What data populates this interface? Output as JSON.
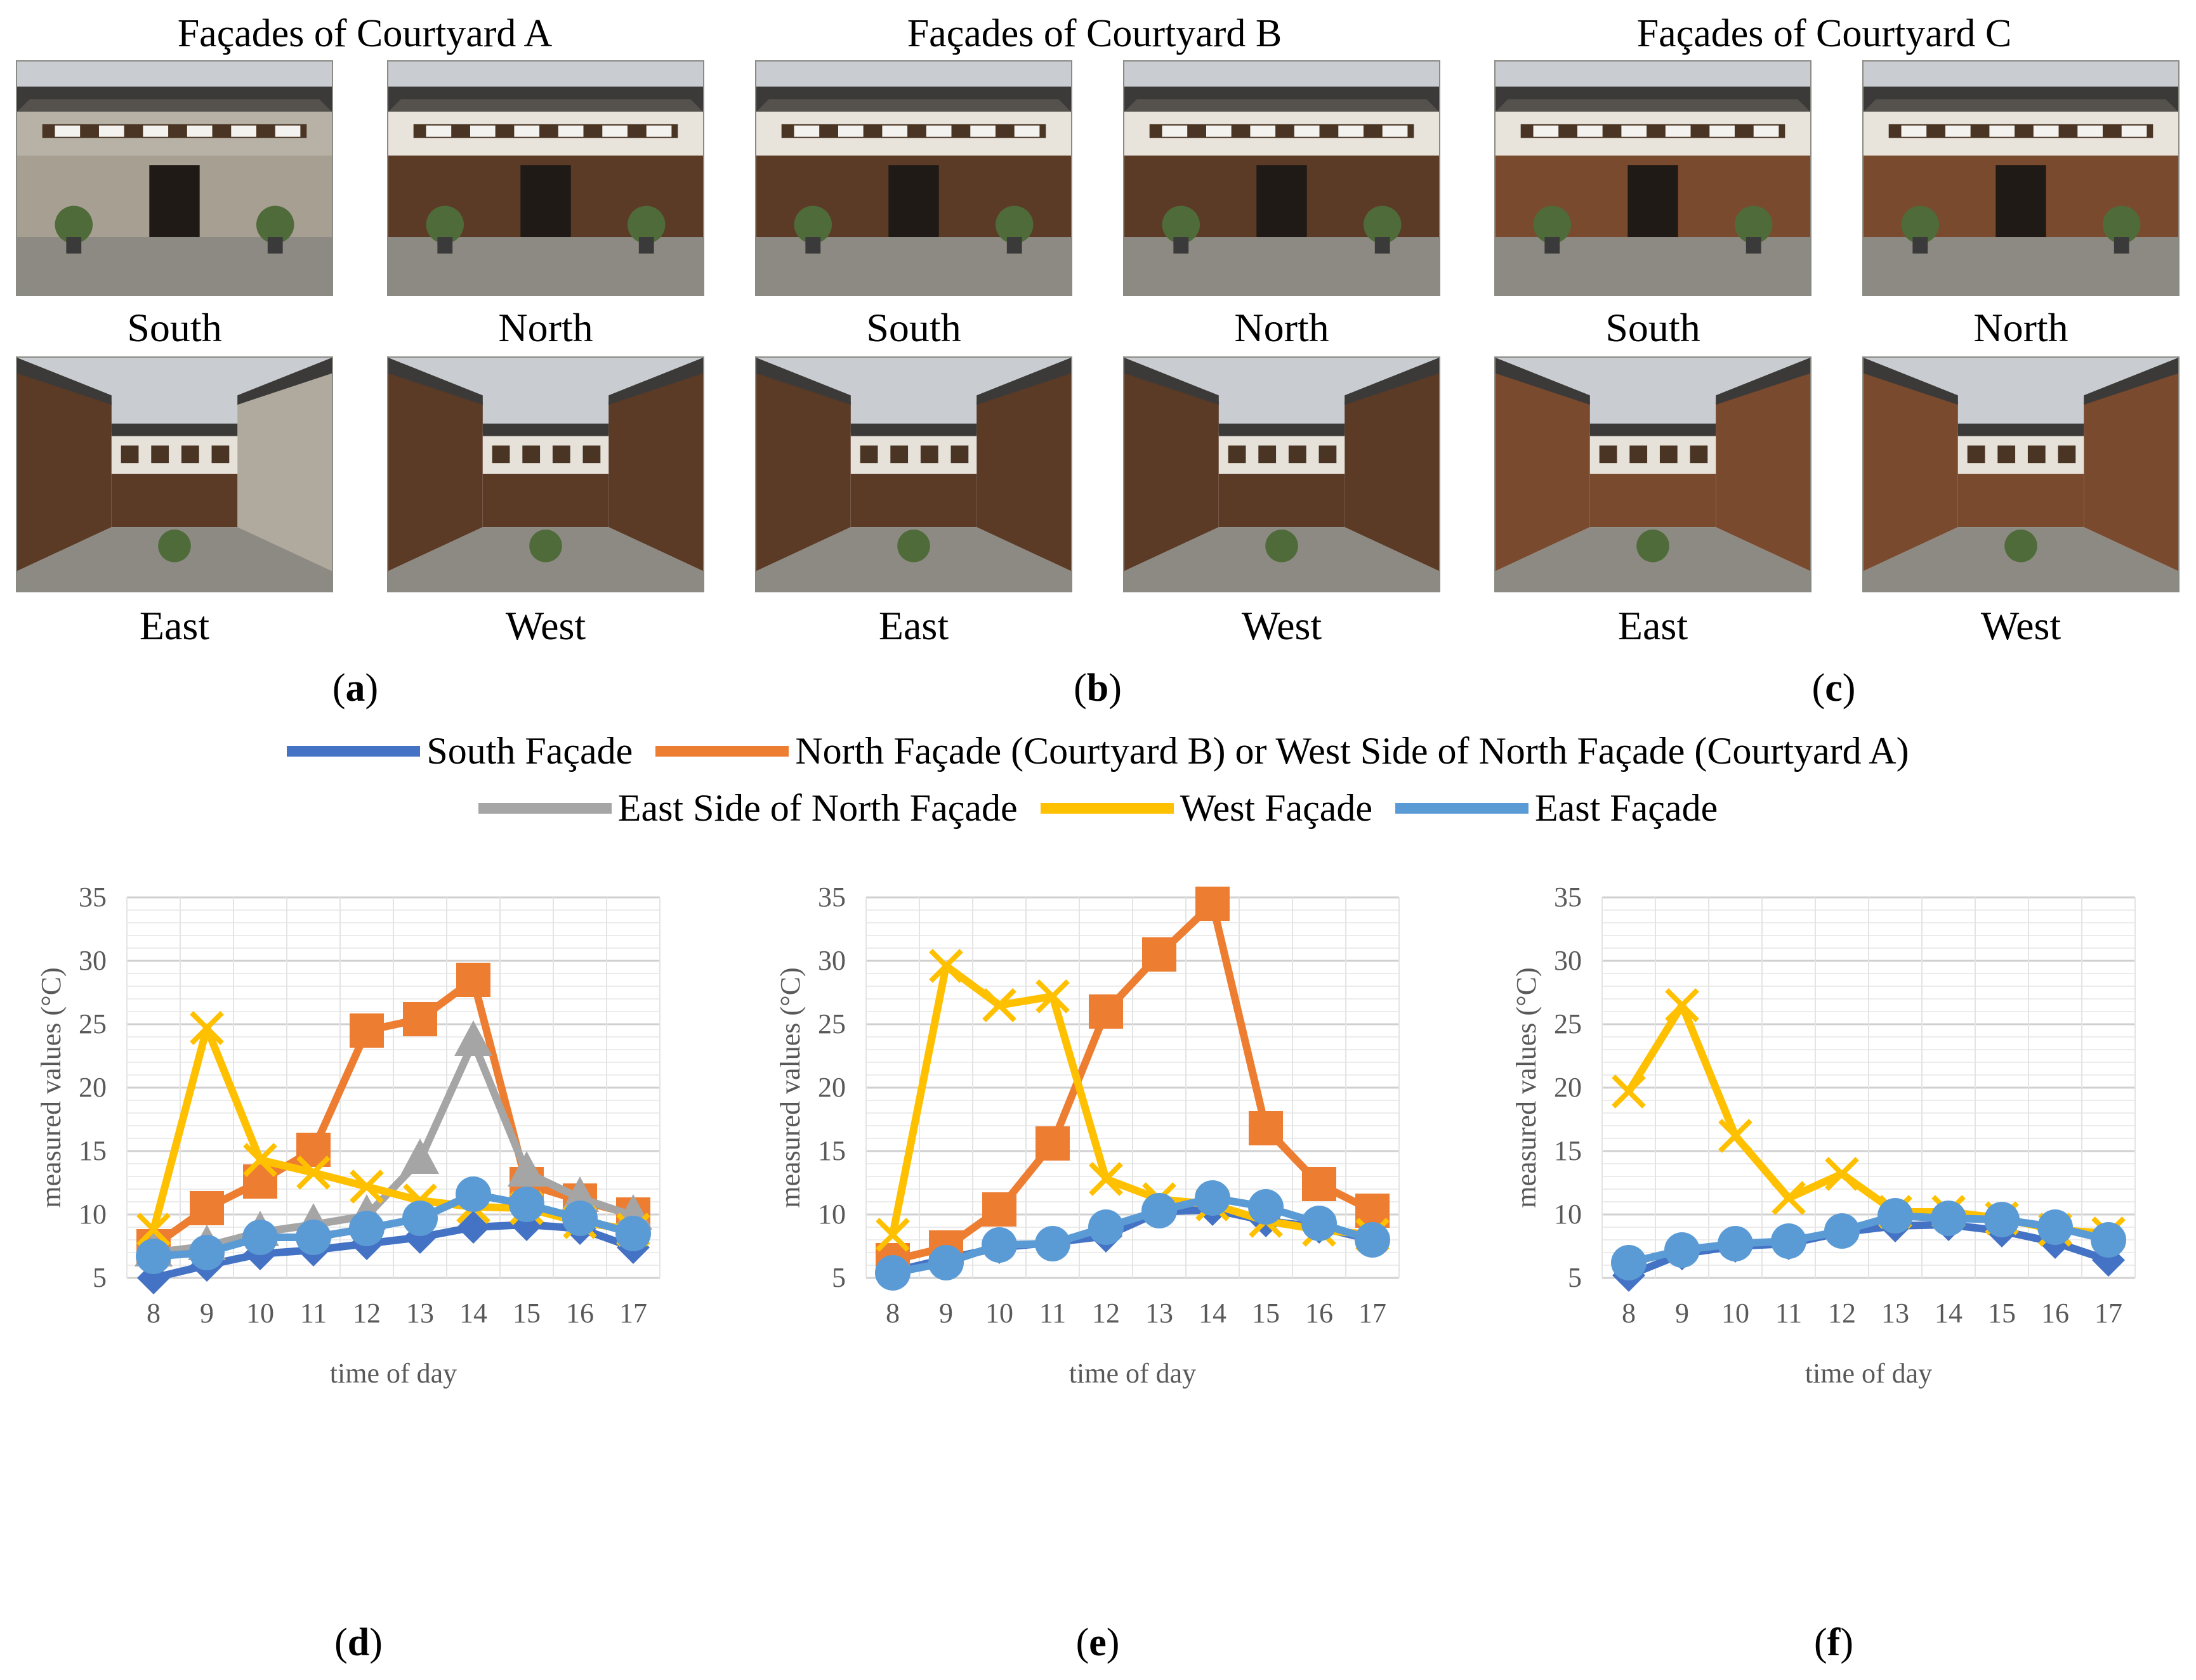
{
  "top": {
    "titles": [
      "Façades of Courtyard A",
      "Façades of Courtyard B",
      "Façades of Courtyard C"
    ],
    "photo_labels": {
      "south": "South",
      "north": "North",
      "east": "East",
      "west": "West"
    },
    "panels": [
      "a",
      "b",
      "c"
    ]
  },
  "legend": {
    "south": {
      "label": "South Façade",
      "color": "#4472C4"
    },
    "north": {
      "label": "North Façade (Courtyard B) or West Side of North Façade (Courtyard A)",
      "color": "#ED7D31"
    },
    "east_north": {
      "label": "East Side of North Façade",
      "color": "#A5A5A5"
    },
    "west": {
      "label": "West Façade",
      "color": "#FFC000"
    },
    "east": {
      "label": "East Façade",
      "color": "#5B9BD5"
    }
  },
  "bottom_panels": [
    "d",
    "e",
    "f"
  ],
  "chart_data": [
    {
      "type": "line",
      "panel": "d",
      "xlabel": "time of day",
      "ylabel": "measured values (°C)",
      "x": [
        8,
        9,
        10,
        11,
        12,
        13,
        14,
        15,
        16,
        17
      ],
      "ylim": [
        5,
        35
      ],
      "yticks": [
        5,
        10,
        15,
        20,
        25,
        30,
        35
      ],
      "series": [
        {
          "name": "South Façade",
          "key": "south",
          "marker": "diamond",
          "values": [
            5.0,
            6.0,
            6.9,
            7.2,
            7.7,
            8.2,
            9.0,
            9.2,
            8.9,
            7.4
          ]
        },
        {
          "name": "North Façade (Courtyard B) or West Side of North Façade (Courtyard A)",
          "key": "north",
          "marker": "square",
          "values": [
            7.5,
            10.5,
            12.6,
            15.1,
            24.5,
            25.4,
            28.5,
            12.4,
            11.1,
            10.0
          ]
        },
        {
          "name": "East Side of North Façade",
          "key": "east_north",
          "marker": "triangle",
          "values": [
            7.0,
            7.5,
            8.6,
            9.2,
            9.9,
            14.3,
            23.6,
            13.3,
            11.3,
            9.9
          ]
        },
        {
          "name": "West Façade",
          "key": "west",
          "marker": "x",
          "values": [
            8.8,
            24.7,
            14.3,
            13.3,
            12.2,
            11.1,
            10.6,
            10.5,
            9.4,
            8.8
          ]
        },
        {
          "name": "East Façade",
          "key": "east",
          "marker": "circle",
          "values": [
            6.7,
            7.0,
            8.2,
            8.2,
            8.9,
            9.7,
            11.6,
            10.8,
            9.7,
            8.5
          ]
        }
      ]
    },
    {
      "type": "line",
      "panel": "e",
      "xlabel": "time of day",
      "ylabel": "measured values (°C)",
      "x": [
        8,
        9,
        10,
        11,
        12,
        13,
        14,
        15,
        16,
        17
      ],
      "ylim": [
        5,
        35
      ],
      "yticks": [
        5,
        10,
        15,
        20,
        25,
        30,
        35
      ],
      "series": [
        {
          "name": "South Façade",
          "key": "south",
          "marker": "diamond",
          "values": [
            5.5,
            6.5,
            7.4,
            7.8,
            8.3,
            10.2,
            10.4,
            9.5,
            9.0,
            8.0
          ]
        },
        {
          "name": "North Façade (Courtyard B) or West Side of North Façade (Courtyard A)",
          "key": "north",
          "marker": "square",
          "values": [
            6.4,
            7.4,
            10.4,
            15.6,
            26.0,
            30.5,
            34.5,
            16.8,
            12.4,
            10.3
          ]
        },
        {
          "name": "West Façade",
          "key": "west",
          "marker": "x",
          "values": [
            8.4,
            29.6,
            26.5,
            27.2,
            12.8,
            11.2,
            10.8,
            9.5,
            8.8,
            8.4
          ]
        },
        {
          "name": "East Façade",
          "key": "east",
          "marker": "circle",
          "values": [
            5.4,
            6.2,
            7.6,
            7.7,
            9.0,
            10.3,
            11.3,
            10.6,
            9.3,
            8.0
          ]
        }
      ]
    },
    {
      "type": "line",
      "panel": "f",
      "xlabel": "time of day",
      "ylabel": "measured values (°C)",
      "x": [
        8,
        9,
        10,
        11,
        12,
        13,
        14,
        15,
        16,
        17
      ],
      "ylim": [
        5,
        35
      ],
      "yticks": [
        5,
        10,
        15,
        20,
        25,
        30,
        35
      ],
      "series": [
        {
          "name": "South Façade",
          "key": "south",
          "marker": "diamond",
          "values": [
            5.2,
            6.9,
            7.5,
            7.7,
            8.6,
            9.1,
            9.2,
            8.7,
            7.8,
            6.4
          ]
        },
        {
          "name": "West Façade",
          "key": "west",
          "marker": "x",
          "values": [
            19.7,
            26.5,
            16.2,
            11.3,
            13.2,
            10.2,
            10.2,
            9.7,
            8.8,
            8.5
          ]
        },
        {
          "name": "East Façade",
          "key": "east",
          "marker": "circle",
          "values": [
            6.2,
            7.2,
            7.7,
            7.9,
            8.7,
            9.9,
            9.7,
            9.6,
            9.0,
            8.0
          ]
        }
      ]
    }
  ]
}
